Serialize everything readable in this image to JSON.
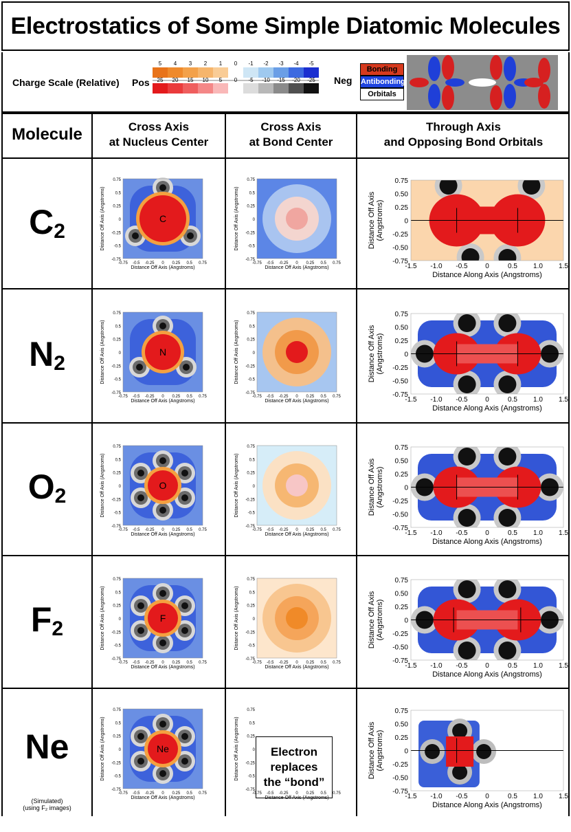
{
  "title": "Electrostatics of Some Simple Diatomic Molecules",
  "scale": {
    "label": "Charge Scale (Relative)",
    "pos": "Pos",
    "neg": "Neg",
    "top_ticks": [
      "5",
      "4",
      "3",
      "2",
      "1",
      "0",
      "-1",
      "-2",
      "-3",
      "-4",
      "-5"
    ],
    "bottom_ticks": [
      "25",
      "20",
      "15",
      "10",
      "5",
      "0",
      "-5",
      "-10",
      "-15",
      "-20",
      "-25"
    ],
    "top_colors": [
      "#e8731a",
      "#ef8a2c",
      "#f3a14a",
      "#f6b56c",
      "#f9cc96",
      "#fff",
      "#cfe6f5",
      "#9fc9ef",
      "#6a9ee6",
      "#3d6ae0",
      "#1b2fd0"
    ],
    "bottom_colors": [
      "#e31a1c",
      "#ea3b3c",
      "#ef5e5e",
      "#f48787",
      "#f9b8b8",
      "#fff",
      "#dcdcdc",
      "#b8b8b8",
      "#8a8a8a",
      "#505050",
      "#111111"
    ]
  },
  "legend": {
    "bonding": "Bonding",
    "antibonding": "Antibonding",
    "orbitals": "Orbitals"
  },
  "headers": {
    "molecule": "Molecule",
    "col1_line1": "Cross Axis",
    "col1_line2": "at Nucleus Center",
    "col2_line1": "Cross Axis",
    "col2_line2": "at Bond Center",
    "col3_line1": "Through Axis",
    "col3_line2": "and Opposing Bond Orbitals"
  },
  "axis": {
    "off_axis": "Distance Off Axis",
    "off_axis_units": "(Angstroms)",
    "along_axis": "Distance Along Axis (Angstroms)",
    "off_axis_small": "Distance Off Axis (Angstroms)",
    "small_ticks": [
      "-0.75",
      "-0.5",
      "-0.25",
      "0",
      "0.25",
      "0.5",
      "0.75"
    ],
    "small_yticks": [
      "0.75",
      "0.5",
      "0.25",
      "0",
      "-0.25",
      "-0.5",
      "-0.75"
    ],
    "big_yticks": [
      "0.75",
      "0.50",
      "0.25",
      "0",
      "-0.25",
      "-0.50",
      "-0.75"
    ],
    "big_xticks": [
      "-1.5",
      "-1.0",
      "-0.5",
      "0",
      "0.5",
      "1.0",
      "1.5"
    ]
  },
  "molecules": [
    {
      "symbol": "C",
      "sub": "2",
      "nucleus_label": "C"
    },
    {
      "symbol": "N",
      "sub": "2",
      "nucleus_label": "N"
    },
    {
      "symbol": "O",
      "sub": "2",
      "nucleus_label": "O"
    },
    {
      "symbol": "F",
      "sub": "2",
      "nucleus_label": "F"
    },
    {
      "symbol": "Ne",
      "sub": "",
      "nucleus_label": "Ne",
      "note_line1": "(Simulated)",
      "note_line2": "(using F₂ images)"
    }
  ],
  "callout": {
    "line1": "Electron",
    "line2": "replaces",
    "line3": "the “bond”"
  }
}
